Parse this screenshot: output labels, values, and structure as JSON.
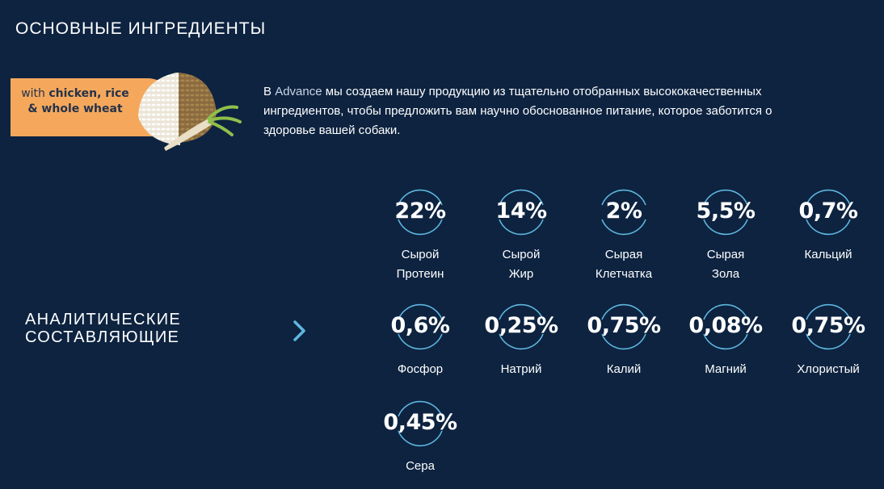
{
  "section": {
    "title": "ОСНОВНЫЕ ИНГРЕДИЕНТЫ"
  },
  "badge": {
    "line1_prefix": "with ",
    "line1_bold": "chicken, rice",
    "line2_bold": "& whole wheat"
  },
  "description": {
    "brand": "Advance",
    "prefix": "В ",
    "text": " мы создаем нашу продукцию из тщательно отобранных высококачественных ингредиентов, чтобы предложить вам научно обоснованное питание, которое заботится о здоровье вашей собаки."
  },
  "analytic": {
    "title_line1": "АНАЛИТИЧЕСКИЕ",
    "title_line2": "СОСТАВЛЯЮЩИЕ",
    "chevron_icon": "chevron-right-icon"
  },
  "colors": {
    "background": "#0d2340",
    "ring": "#5fb7e0",
    "badge": "#f5a85c"
  },
  "stats": [
    {
      "value": "22%",
      "label1": "Сырой",
      "label2": "Протеин"
    },
    {
      "value": "14%",
      "label1": "Сырой",
      "label2": "Жир"
    },
    {
      "value": "2%",
      "label1": "Сырая",
      "label2": "Клетчатка"
    },
    {
      "value": "5,5%",
      "label1": "Сырая",
      "label2": "Зола"
    },
    {
      "value": "0,7%",
      "label1": "Кальций",
      "label2": ""
    },
    {
      "value": "0,6%",
      "label1": "Фосфор",
      "label2": ""
    },
    {
      "value": "0,25%",
      "label1": "Натрий",
      "label2": ""
    },
    {
      "value": "0,75%",
      "label1": "Калий",
      "label2": ""
    },
    {
      "value": "0,08%",
      "label1": "Магний",
      "label2": ""
    },
    {
      "value": "0,75%",
      "label1": "Хлористый",
      "label2": ""
    },
    {
      "value": "0,45%",
      "label1": "Сера",
      "label2": ""
    }
  ]
}
